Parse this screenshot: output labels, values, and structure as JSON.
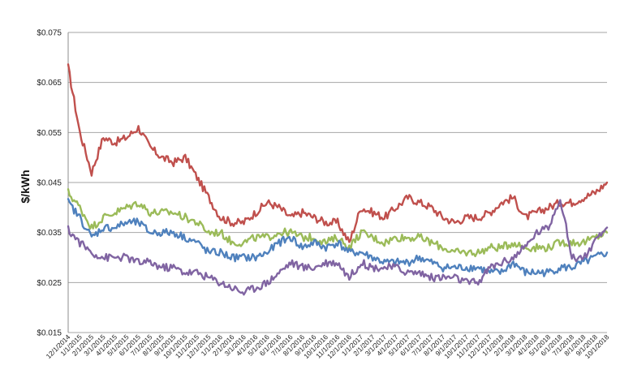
{
  "chart_data": {
    "type": "line",
    "title": "",
    "xlabel": "",
    "ylabel": "$/kWh",
    "ylim": [
      0.015,
      0.075
    ],
    "y_ticks": [
      0.015,
      0.025,
      0.035,
      0.045,
      0.055,
      0.065,
      0.075
    ],
    "y_tick_labels": [
      "$0.015",
      "$0.025",
      "$0.035",
      "$0.045",
      "$0.055",
      "$0.065",
      "$0.075"
    ],
    "grid": "horizontal",
    "x_tick_labels": [
      "12/1/2014",
      "1/1/2015",
      "2/1/2015",
      "3/1/2015",
      "4/1/2015",
      "5/1/2015",
      "6/1/2015",
      "7/1/2015",
      "8/1/2015",
      "9/1/2015",
      "10/1/2015",
      "11/1/2015",
      "12/1/2015",
      "1/1/2016",
      "2/1/2016",
      "3/1/2016",
      "4/1/2016",
      "5/1/2016",
      "6/1/2016",
      "7/1/2016",
      "8/1/2016",
      "9/1/2016",
      "10/1/2016",
      "11/1/2016",
      "12/1/2016",
      "1/1/2017",
      "2/1/2017",
      "3/1/2017",
      "4/1/2017",
      "5/1/2017",
      "6/1/2017",
      "7/1/2017",
      "8/1/2017",
      "9/1/2017",
      "10/1/2017",
      "11/1/2017",
      "12/1/2017",
      "1/1/2018",
      "2/1/2018",
      "3/1/2018",
      "4/1/2018",
      "5/1/2018",
      "6/1/2018",
      "7/1/2018",
      "8/1/2018",
      "9/1/2018",
      "10/1/2018"
    ],
    "series": [
      {
        "color": "#C0504D",
        "values": [
          0.068,
          0.055,
          0.047,
          0.054,
          0.053,
          0.054,
          0.056,
          0.052,
          0.05,
          0.049,
          0.05,
          0.046,
          0.042,
          0.038,
          0.037,
          0.037,
          0.039,
          0.041,
          0.04,
          0.038,
          0.039,
          0.038,
          0.037,
          0.037,
          0.033,
          0.04,
          0.039,
          0.038,
          0.04,
          0.042,
          0.041,
          0.04,
          0.038,
          0.037,
          0.038,
          0.038,
          0.039,
          0.041,
          0.042,
          0.038,
          0.039,
          0.04,
          0.041,
          0.041,
          0.042,
          0.043,
          0.045
        ]
      },
      {
        "color": "#9BBB59",
        "values": [
          0.043,
          0.04,
          0.036,
          0.038,
          0.039,
          0.04,
          0.041,
          0.039,
          0.039,
          0.039,
          0.038,
          0.037,
          0.035,
          0.035,
          0.033,
          0.033,
          0.034,
          0.034,
          0.035,
          0.035,
          0.034,
          0.034,
          0.033,
          0.034,
          0.032,
          0.035,
          0.034,
          0.033,
          0.034,
          0.034,
          0.034,
          0.033,
          0.032,
          0.031,
          0.031,
          0.031,
          0.032,
          0.032,
          0.033,
          0.032,
          0.032,
          0.032,
          0.033,
          0.033,
          0.033,
          0.034,
          0.035
        ]
      },
      {
        "color": "#4F81BD",
        "values": [
          0.041,
          0.038,
          0.034,
          0.036,
          0.036,
          0.037,
          0.037,
          0.035,
          0.035,
          0.035,
          0.034,
          0.033,
          0.031,
          0.031,
          0.03,
          0.03,
          0.03,
          0.031,
          0.033,
          0.034,
          0.032,
          0.033,
          0.032,
          0.033,
          0.031,
          0.031,
          0.03,
          0.029,
          0.029,
          0.029,
          0.03,
          0.029,
          0.028,
          0.028,
          0.028,
          0.028,
          0.027,
          0.027,
          0.029,
          0.027,
          0.027,
          0.027,
          0.028,
          0.028,
          0.029,
          0.03,
          0.031
        ]
      },
      {
        "color": "#8064A2",
        "values": [
          0.0355,
          0.033,
          0.031,
          0.03,
          0.03,
          0.03,
          0.029,
          0.029,
          0.028,
          0.028,
          0.027,
          0.027,
          0.026,
          0.025,
          0.024,
          0.023,
          0.024,
          0.025,
          0.027,
          0.029,
          0.028,
          0.028,
          0.029,
          0.029,
          0.026,
          0.029,
          0.028,
          0.028,
          0.028,
          0.027,
          0.027,
          0.026,
          0.026,
          0.026,
          0.025,
          0.025,
          0.028,
          0.029,
          0.03,
          0.032,
          0.035,
          0.036,
          0.042,
          0.03,
          0.03,
          0.033,
          0.036
        ]
      }
    ]
  }
}
